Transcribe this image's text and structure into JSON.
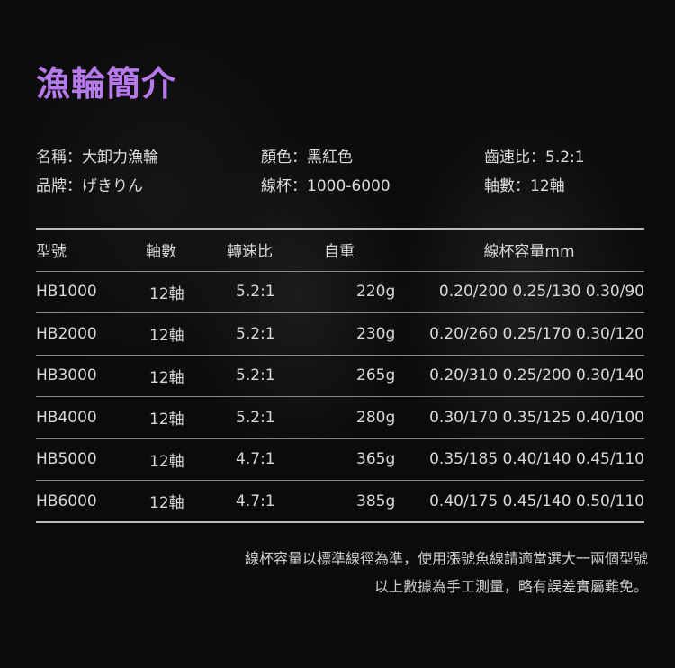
{
  "title": "漁輪簡介",
  "info": {
    "name": "名稱：大卸力漁輪",
    "brand": "品牌：げきりん",
    "color": "顏色：黑紅色",
    "spool": "線杯：1000-6000",
    "ratio": "齒速比：5.2:1",
    "bearings": "軸數：12軸"
  },
  "table": {
    "headers": [
      "型號",
      "軸數",
      "轉速比",
      "自重",
      "線杯容量mm"
    ],
    "rows": [
      [
        "HB1000",
        "12軸",
        "5.2:1",
        "220g",
        "0.20/200 0.25/130 0.30/90"
      ],
      [
        "HB2000",
        "12軸",
        "5.2:1",
        "230g",
        "0.20/260 0.25/170 0.30/120"
      ],
      [
        "HB3000",
        "12軸",
        "5.2:1",
        "265g",
        "0.20/310 0.25/200 0.30/140"
      ],
      [
        "HB4000",
        "12軸",
        "5.2:1",
        "280g",
        "0.30/170 0.35/125 0.40/100"
      ],
      [
        "HB5000",
        "12軸",
        "4.7:1",
        "365g",
        "0.35/185 0.40/140 0.45/110"
      ],
      [
        "HB6000",
        "12軸",
        "4.7:1",
        "385g",
        "0.40/175 0.45/140 0.50/110"
      ]
    ]
  },
  "notes": [
    "線杯容量以標準線徑為準，使用漲號魚線請適當選大一兩個型號",
    "以上數據為手工測量，略有誤差實屬難免。"
  ]
}
